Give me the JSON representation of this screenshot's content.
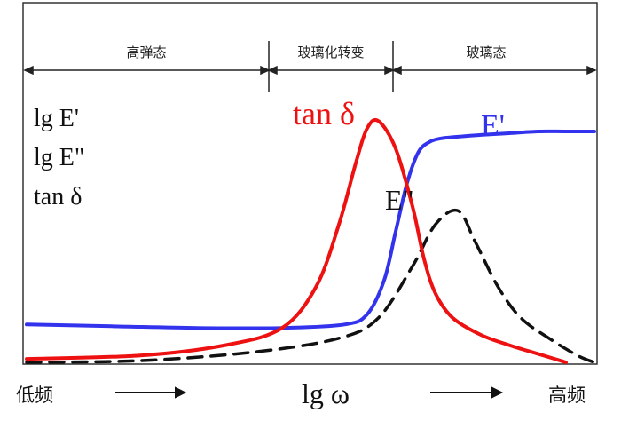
{
  "chart_data": {
    "type": "line",
    "title": "",
    "regions": [
      "高弹态",
      "玻璃化转变",
      "玻璃态"
    ],
    "ylabels": [
      "lg E'",
      "lg E\"",
      "tan δ"
    ],
    "xlabel": "lg ω",
    "x_low_label": "低频",
    "x_high_label": "高频",
    "xlim": [
      0,
      10
    ],
    "ylim": [
      0,
      10
    ],
    "series": [
      {
        "name": "E'",
        "color": "#3333ee",
        "style": "solid",
        "x": [
          0,
          1.5,
          3,
          4.5,
          5.6,
          6.0,
          6.3,
          6.5,
          6.7,
          6.9,
          7.1,
          7.3,
          7.6,
          8.0,
          8.5,
          9.0,
          9.5,
          10
        ],
        "y": [
          1.1,
          1.05,
          1.0,
          1.0,
          1.1,
          1.4,
          2.4,
          3.8,
          5.2,
          6.1,
          6.4,
          6.5,
          6.55,
          6.6,
          6.65,
          6.7,
          6.7,
          6.7
        ]
      },
      {
        "name": "tan δ",
        "color": "#ee1111",
        "style": "solid",
        "x": [
          0,
          2.0,
          3.5,
          4.5,
          5.1,
          5.5,
          5.8,
          6.0,
          6.2,
          6.5,
          6.8,
          7.0,
          7.2,
          7.5,
          8.0,
          8.5,
          9.0,
          9.5
        ],
        "y": [
          0.1,
          0.2,
          0.5,
          1.0,
          2.2,
          4.0,
          5.8,
          6.8,
          7.0,
          6.2,
          4.5,
          3.0,
          2.0,
          1.3,
          0.8,
          0.5,
          0.25,
          0.0
        ]
      },
      {
        "name": "E\"",
        "color": "#111111",
        "style": "dashed",
        "x": [
          0,
          2.0,
          4.0,
          5.5,
          6.2,
          6.8,
          7.2,
          7.6,
          7.9,
          8.3,
          8.7,
          9.2,
          9.7,
          10
        ],
        "y": [
          0.0,
          0.05,
          0.3,
          0.7,
          1.3,
          2.8,
          4.0,
          4.4,
          3.5,
          2.2,
          1.3,
          0.7,
          0.2,
          0.0
        ]
      }
    ]
  }
}
